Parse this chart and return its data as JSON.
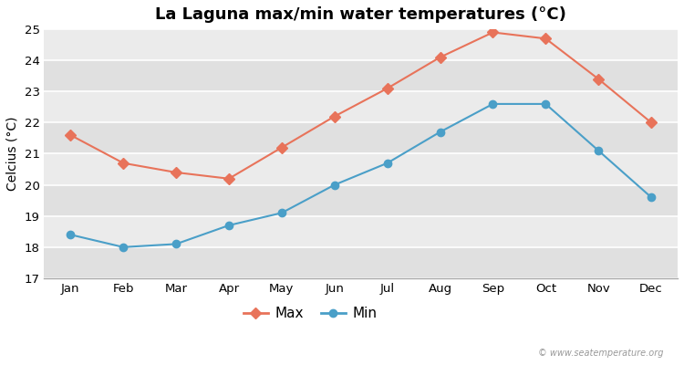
{
  "title": "La Laguna max/min water temperatures (°C)",
  "ylabel": "Celcius (°C)",
  "months": [
    "Jan",
    "Feb",
    "Mar",
    "Apr",
    "May",
    "Jun",
    "Jul",
    "Aug",
    "Sep",
    "Oct",
    "Nov",
    "Dec"
  ],
  "max_temps": [
    21.6,
    20.7,
    20.4,
    20.2,
    21.2,
    22.2,
    23.1,
    24.1,
    24.9,
    24.7,
    23.4,
    22.0
  ],
  "min_temps": [
    18.4,
    18.0,
    18.1,
    18.7,
    19.1,
    20.0,
    20.7,
    21.7,
    22.6,
    22.6,
    21.1,
    19.6
  ],
  "max_color": "#e8735a",
  "min_color": "#4a9fc8",
  "fig_bg_color": "#ffffff",
  "band_light": "#ebebeb",
  "band_dark": "#e0e0e0",
  "ylim": [
    17,
    25
  ],
  "yticks": [
    17,
    18,
    19,
    20,
    21,
    22,
    23,
    24,
    25
  ],
  "legend_labels": [
    "Max",
    "Min"
  ],
  "watermark": "© www.seatemperature.org",
  "title_fontsize": 13,
  "axis_label_fontsize": 10,
  "tick_fontsize": 9.5,
  "legend_fontsize": 11
}
